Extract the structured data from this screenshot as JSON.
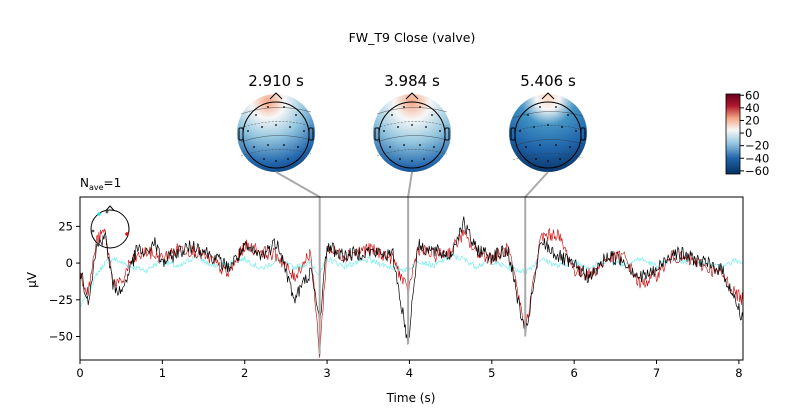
{
  "figure": {
    "title": "FW_T9 Close (valve)",
    "nave_label": "N",
    "nave_sub": "ave",
    "nave_value": "=1"
  },
  "topomaps": [
    {
      "label": "2.910 s",
      "time": 2.91,
      "pattern": "frontal-positive"
    },
    {
      "label": "3.984 s",
      "time": 3.984,
      "pattern": "mixed"
    },
    {
      "label": "5.406 s",
      "time": 5.406,
      "pattern": "posterior-negative"
    }
  ],
  "colorbar": {
    "ticks": [
      60,
      40,
      20,
      0,
      -20,
      -40,
      -60
    ],
    "vmin": -65,
    "vmax": 62,
    "cmap": "RdBu_r"
  },
  "chart_data": {
    "type": "line",
    "xlabel": "Time (s)",
    "ylabel": "µV",
    "xlim": [
      0,
      8.05
    ],
    "ylim": [
      -66,
      45
    ],
    "xticks": [
      0,
      1,
      2,
      3,
      4,
      5,
      6,
      7,
      8
    ],
    "yticks": [
      25,
      0,
      -25,
      -50
    ],
    "grid": false,
    "events": [
      {
        "time": 2.91,
        "dip": -62
      },
      {
        "time": 3.984,
        "dip": -55
      },
      {
        "time": 5.406,
        "dip": -50
      }
    ],
    "series": [
      {
        "color": "#000000",
        "points": [
          [
            0,
            -5
          ],
          [
            0.1,
            -25
          ],
          [
            0.2,
            10
          ],
          [
            0.3,
            20
          ],
          [
            0.4,
            -15
          ],
          [
            0.5,
            -20
          ],
          [
            0.6,
            -5
          ],
          [
            0.7,
            10
          ],
          [
            0.8,
            5
          ],
          [
            0.9,
            15
          ],
          [
            1.0,
            0
          ],
          [
            1.2,
            8
          ],
          [
            1.4,
            12
          ],
          [
            1.6,
            5
          ],
          [
            1.8,
            -3
          ],
          [
            2.0,
            10
          ],
          [
            2.2,
            5
          ],
          [
            2.4,
            15
          ],
          [
            2.6,
            -25
          ],
          [
            2.8,
            -5
          ],
          [
            2.91,
            -40
          ],
          [
            3.0,
            12
          ],
          [
            3.2,
            5
          ],
          [
            3.5,
            8
          ],
          [
            3.8,
            5
          ],
          [
            3.984,
            -55
          ],
          [
            4.1,
            12
          ],
          [
            4.3,
            8
          ],
          [
            4.5,
            5
          ],
          [
            4.65,
            28
          ],
          [
            4.8,
            10
          ],
          [
            5.0,
            5
          ],
          [
            5.2,
            8
          ],
          [
            5.406,
            -50
          ],
          [
            5.6,
            15
          ],
          [
            5.8,
            5
          ],
          [
            6.0,
            -2
          ],
          [
            6.2,
            -10
          ],
          [
            6.4,
            5
          ],
          [
            6.6,
            2
          ],
          [
            6.8,
            -10
          ],
          [
            7.0,
            -5
          ],
          [
            7.2,
            8
          ],
          [
            7.5,
            2
          ],
          [
            7.8,
            -5
          ],
          [
            7.95,
            -25
          ],
          [
            8.05,
            -38
          ]
        ]
      },
      {
        "color": "#cc0000",
        "points": [
          [
            0,
            -8
          ],
          [
            0.1,
            -20
          ],
          [
            0.2,
            15
          ],
          [
            0.3,
            22
          ],
          [
            0.4,
            -12
          ],
          [
            0.5,
            -15
          ],
          [
            0.6,
            0
          ],
          [
            0.8,
            8
          ],
          [
            1.0,
            3
          ],
          [
            1.2,
            10
          ],
          [
            1.4,
            8
          ],
          [
            1.6,
            2
          ],
          [
            1.8,
            -8
          ],
          [
            2.0,
            12
          ],
          [
            2.2,
            8
          ],
          [
            2.4,
            5
          ],
          [
            2.6,
            -10
          ],
          [
            2.8,
            8
          ],
          [
            2.91,
            -62
          ],
          [
            3.0,
            10
          ],
          [
            3.2,
            5
          ],
          [
            3.5,
            10
          ],
          [
            3.8,
            3
          ],
          [
            3.984,
            -20
          ],
          [
            4.1,
            10
          ],
          [
            4.3,
            5
          ],
          [
            4.5,
            8
          ],
          [
            4.65,
            20
          ],
          [
            4.8,
            8
          ],
          [
            5.0,
            3
          ],
          [
            5.2,
            10
          ],
          [
            5.406,
            -45
          ],
          [
            5.6,
            18
          ],
          [
            5.8,
            20
          ],
          [
            6.0,
            -5
          ],
          [
            6.2,
            -8
          ],
          [
            6.4,
            3
          ],
          [
            6.6,
            5
          ],
          [
            6.8,
            -15
          ],
          [
            7.0,
            -8
          ],
          [
            7.2,
            5
          ],
          [
            7.5,
            0
          ],
          [
            7.8,
            -8
          ],
          [
            7.95,
            -20
          ],
          [
            8.05,
            -25
          ]
        ]
      },
      {
        "color": "#7feeee",
        "points": [
          [
            0,
            -30
          ],
          [
            0.1,
            -20
          ],
          [
            0.2,
            -8
          ],
          [
            0.3,
            0
          ],
          [
            0.4,
            3
          ],
          [
            0.6,
            -2
          ],
          [
            0.8,
            -5
          ],
          [
            1.0,
            2
          ],
          [
            1.2,
            -3
          ],
          [
            1.4,
            5
          ],
          [
            1.6,
            -2
          ],
          [
            1.8,
            0
          ],
          [
            2.0,
            3
          ],
          [
            2.2,
            -4
          ],
          [
            2.4,
            2
          ],
          [
            2.6,
            -3
          ],
          [
            2.8,
            0
          ],
          [
            2.91,
            -8
          ],
          [
            3.0,
            3
          ],
          [
            3.2,
            -2
          ],
          [
            3.5,
            2
          ],
          [
            3.8,
            -3
          ],
          [
            3.984,
            -5
          ],
          [
            4.1,
            2
          ],
          [
            4.3,
            -2
          ],
          [
            4.5,
            5
          ],
          [
            4.65,
            3
          ],
          [
            4.8,
            -2
          ],
          [
            5.0,
            1
          ],
          [
            5.2,
            -3
          ],
          [
            5.406,
            -6
          ],
          [
            5.6,
            3
          ],
          [
            5.8,
            -2
          ],
          [
            6.0,
            1
          ],
          [
            6.2,
            -3
          ],
          [
            6.4,
            2
          ],
          [
            6.6,
            -1
          ],
          [
            6.8,
            3
          ],
          [
            7.0,
            -2
          ],
          [
            7.2,
            2
          ],
          [
            7.5,
            0
          ],
          [
            7.8,
            -3
          ],
          [
            7.95,
            2
          ],
          [
            8.05,
            0
          ]
        ]
      }
    ]
  }
}
